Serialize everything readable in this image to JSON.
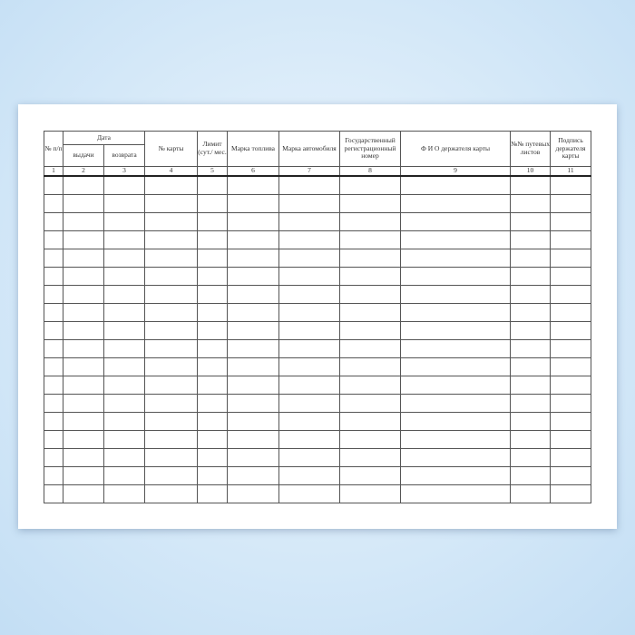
{
  "headers": {
    "no": "№ п/п",
    "date": "Дата",
    "issue": "выдачи",
    "return": "возврата",
    "card_no": "№ карты",
    "limit": "Лимит (сут./ мес.",
    "fuel": "Марка топлива",
    "car": "Марка автомобиля",
    "reg": "Государственный регистрационный номер",
    "holder": "Ф И О держателя карты",
    "waybills": "№№ путевых листов",
    "signature": "Подпись держателя карты"
  },
  "column_numbers": [
    "1",
    "2",
    "3",
    "4",
    "5",
    "6",
    "7",
    "8",
    "9",
    "10",
    "11"
  ],
  "empty_rows": 18
}
